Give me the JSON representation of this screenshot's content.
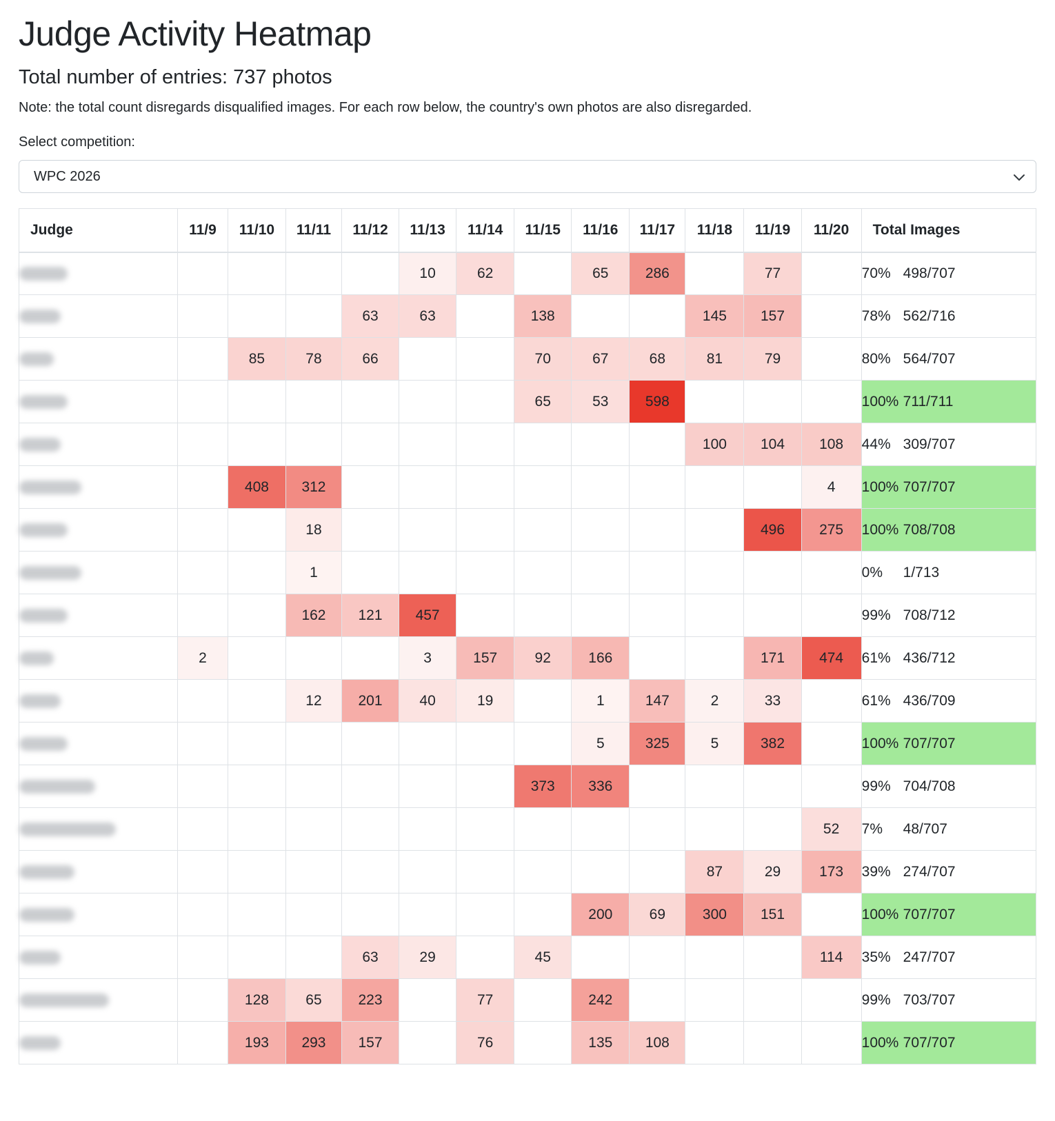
{
  "title": "Judge Activity Heatmap",
  "subtitle": "Total number of entries: 737 photos",
  "note": "Note: the total count disregards disqualified images. For each row below, the country's own photos are also disregarded.",
  "select": {
    "label": "Select competition:",
    "value": "WPC 2026"
  },
  "table": {
    "judge_header": "Judge",
    "total_header": "Total Images",
    "dates": [
      "11/9",
      "11/10",
      "11/11",
      "11/12",
      "11/13",
      "11/14",
      "11/15",
      "11/16",
      "11/17",
      "11/18",
      "11/19",
      "11/20"
    ],
    "rows": [
      {
        "judge": "Belgium",
        "cells": [
          null,
          null,
          null,
          null,
          10,
          62,
          null,
          65,
          286,
          null,
          77,
          null
        ],
        "pct": "70%",
        "total": "498/707"
      },
      {
        "judge": "Greece",
        "cells": [
          null,
          null,
          null,
          63,
          63,
          null,
          138,
          null,
          null,
          145,
          157,
          null
        ],
        "pct": "78%",
        "total": "562/716"
      },
      {
        "judge": "Spain",
        "cells": [
          null,
          85,
          78,
          66,
          null,
          null,
          70,
          67,
          68,
          81,
          79,
          null
        ],
        "pct": "80%",
        "total": "564/707"
      },
      {
        "judge": "Austria",
        "cells": [
          null,
          null,
          null,
          null,
          null,
          null,
          65,
          53,
          598,
          null,
          null,
          null
        ],
        "pct": "100%",
        "total": "711/711"
      },
      {
        "judge": "Norway",
        "cells": [
          null,
          null,
          null,
          null,
          null,
          null,
          null,
          null,
          null,
          100,
          104,
          108
        ],
        "pct": "44%",
        "total": "309/707"
      },
      {
        "judge": "Australia",
        "cells": [
          null,
          408,
          312,
          null,
          null,
          null,
          null,
          null,
          null,
          null,
          null,
          4
        ],
        "pct": "100%",
        "total": "707/707"
      },
      {
        "judge": "Denmark",
        "cells": [
          null,
          null,
          18,
          null,
          null,
          null,
          null,
          null,
          null,
          null,
          496,
          275
        ],
        "pct": "100%",
        "total": "708/708"
      },
      {
        "judge": "Singapore",
        "cells": [
          null,
          null,
          1,
          null,
          null,
          null,
          null,
          null,
          null,
          null,
          null,
          null
        ],
        "pct": "0%",
        "total": "1/713"
      },
      {
        "judge": "Ecuador",
        "cells": [
          null,
          null,
          162,
          121,
          457,
          null,
          null,
          null,
          null,
          null,
          null,
          null
        ],
        "pct": "99%",
        "total": "708/712"
      },
      {
        "judge": "Japan",
        "cells": [
          2,
          null,
          null,
          null,
          3,
          157,
          92,
          166,
          null,
          null,
          171,
          474
        ],
        "pct": "61%",
        "total": "436/712"
      },
      {
        "judge": "France",
        "cells": [
          null,
          null,
          12,
          201,
          40,
          19,
          null,
          1,
          147,
          2,
          33,
          null
        ],
        "pct": "61%",
        "total": "436/709"
      },
      {
        "judge": "Finland",
        "cells": [
          null,
          null,
          null,
          null,
          null,
          null,
          null,
          5,
          325,
          5,
          382,
          null
        ],
        "pct": "100%",
        "total": "707/707"
      },
      {
        "judge": "New Zealand",
        "cells": [
          null,
          null,
          null,
          null,
          null,
          null,
          373,
          336,
          null,
          null,
          null,
          null
        ],
        "pct": "99%",
        "total": "704/708"
      },
      {
        "judge": "United Kingdom",
        "cells": [
          null,
          null,
          null,
          null,
          null,
          null,
          null,
          null,
          null,
          null,
          null,
          52
        ],
        "pct": "7%",
        "total": "48/707"
      },
      {
        "judge": "Barbados",
        "cells": [
          null,
          null,
          null,
          null,
          null,
          null,
          null,
          null,
          null,
          87,
          29,
          173
        ],
        "pct": "39%",
        "total": "274/707"
      },
      {
        "judge": "Malaysia",
        "cells": [
          null,
          null,
          null,
          null,
          null,
          null,
          null,
          200,
          69,
          300,
          151,
          null
        ],
        "pct": "100%",
        "total": "707/707"
      },
      {
        "judge": "Sweden",
        "cells": [
          null,
          null,
          null,
          63,
          29,
          null,
          45,
          null,
          null,
          null,
          null,
          114
        ],
        "pct": "35%",
        "total": "247/707"
      },
      {
        "judge": "United States",
        "cells": [
          null,
          128,
          65,
          223,
          null,
          77,
          null,
          242,
          null,
          null,
          null,
          null
        ],
        "pct": "99%",
        "total": "703/707"
      },
      {
        "judge": "Canada",
        "cells": [
          null,
          193,
          293,
          157,
          null,
          76,
          null,
          135,
          108,
          null,
          null,
          null
        ],
        "pct": "100%",
        "total": "707/707"
      }
    ],
    "heat_color": "#e8382b",
    "full_color": "#a3e99a"
  }
}
